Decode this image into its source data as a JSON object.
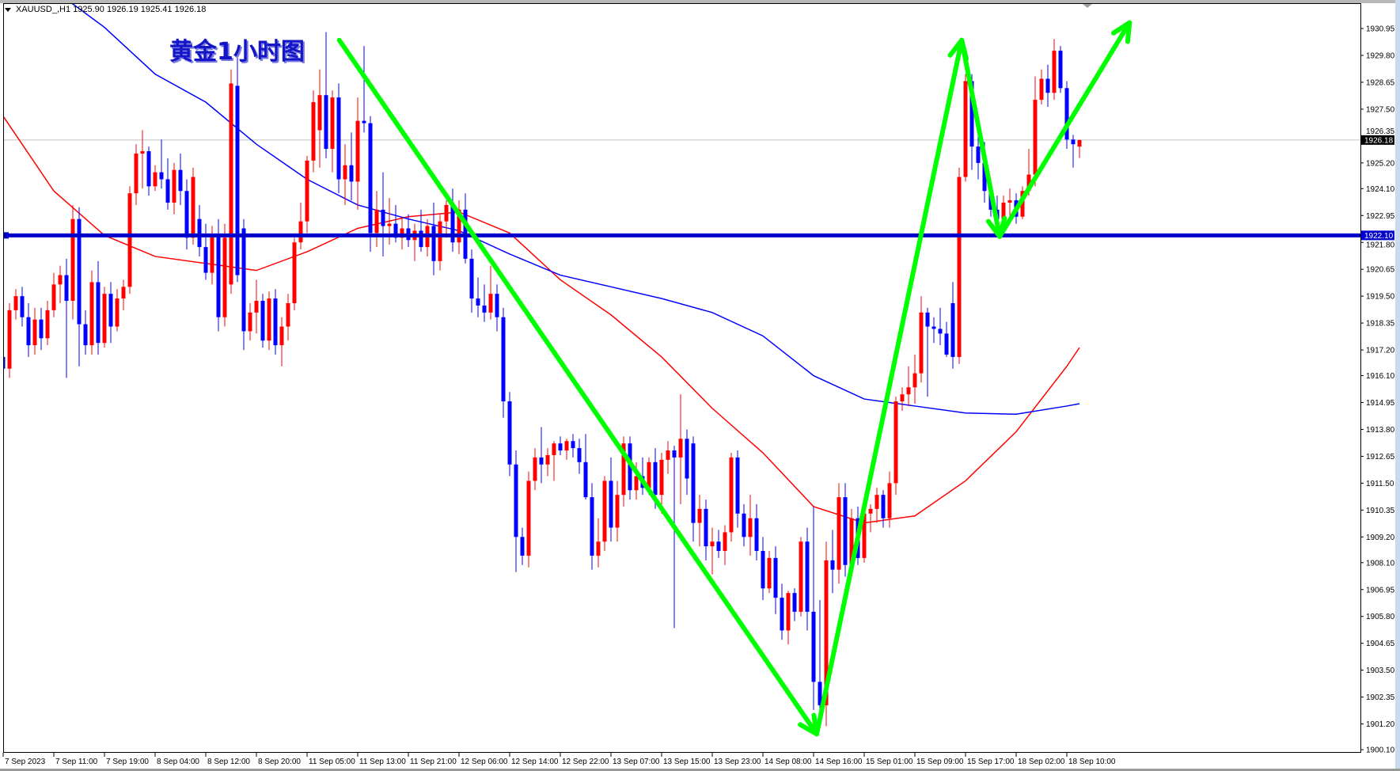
{
  "header": {
    "symbol_line": "XAUUSD_,H1  1925.90 1926.19 1925.41 1926.18",
    "menu_icon": "triangle-down-icon"
  },
  "overlay_title": "黄金1小时图",
  "chart_data": {
    "type": "candlestick",
    "symbol": "XAUUSD_",
    "timeframe": "H1",
    "ylim": [
      1900.0,
      1932.0
    ],
    "grid": false,
    "colors": {
      "up": "#ff0000",
      "down": "#0000ff",
      "ma_fast": "#ff0000",
      "ma_slow": "#0000ff",
      "trend_arrows": "#00ff00",
      "level_line": "#0000cc",
      "price_line": "#c0c0c0"
    },
    "y_ticks": [
      "1930.95",
      "1929.80",
      "1928.65",
      "1927.50",
      "1926.35",
      "1925.20",
      "1924.10",
      "1922.95",
      "1921.80",
      "1920.65",
      "1919.50",
      "1918.35",
      "1917.20",
      "1916.10",
      "1914.95",
      "1913.80",
      "1912.65",
      "1911.50",
      "1910.35",
      "1909.20",
      "1908.10",
      "1906.95",
      "1905.80",
      "1904.65",
      "1903.50",
      "1902.35",
      "1901.20",
      "1900.10"
    ],
    "x_labels": [
      "7 Sep 2023",
      "7 Sep 11:00",
      "7 Sep 19:00",
      "8 Sep 04:00",
      "8 Sep 12:00",
      "8 Sep 20:00",
      "11 Sep 05:00",
      "11 Sep 13:00",
      "11 Sep 21:00",
      "12 Sep 06:00",
      "12 Sep 14:00",
      "12 Sep 22:00",
      "13 Sep 07:00",
      "13 Sep 15:00",
      "13 Sep 23:00",
      "14 Sep 08:00",
      "14 Sep 16:00",
      "15 Sep 01:00",
      "15 Sep 09:00",
      "15 Sep 17:00",
      "18 Sep 02:00",
      "18 Sep 10:00"
    ],
    "bars_per_label": 8,
    "current_price": 1926.18,
    "current_price_label": "1926.18",
    "level": 1922.1,
    "level_label": "1922.10",
    "candles_ohlc": [
      [
        1916.9,
        1917.2,
        1915.9,
        1916.4
      ],
      [
        1916.4,
        1919.2,
        1916.0,
        1918.9
      ],
      [
        1918.9,
        1919.8,
        1918.5,
        1919.5
      ],
      [
        1919.5,
        1919.9,
        1918.2,
        1918.6
      ],
      [
        1918.6,
        1919.2,
        1916.9,
        1917.4
      ],
      [
        1917.4,
        1919.0,
        1917.0,
        1918.5
      ],
      [
        1918.5,
        1919.0,
        1917.2,
        1917.7
      ],
      [
        1917.7,
        1919.3,
        1917.4,
        1918.9
      ],
      [
        1918.9,
        1920.5,
        1918.6,
        1920.0
      ],
      [
        1920.0,
        1920.8,
        1919.2,
        1920.4
      ],
      [
        1920.4,
        1921.1,
        1916.0,
        1919.3
      ],
      [
        1919.3,
        1923.4,
        1918.5,
        1922.8
      ],
      [
        1922.8,
        1923.3,
        1916.5,
        1918.3
      ],
      [
        1918.3,
        1918.9,
        1917.0,
        1917.4
      ],
      [
        1917.4,
        1920.6,
        1917.0,
        1920.1
      ],
      [
        1920.1,
        1921.0,
        1917.0,
        1917.5
      ],
      [
        1917.5,
        1919.9,
        1917.3,
        1919.6
      ],
      [
        1919.6,
        1920.1,
        1917.5,
        1918.2
      ],
      [
        1918.2,
        1919.8,
        1918.0,
        1919.4
      ],
      [
        1919.4,
        1920.2,
        1918.9,
        1919.9
      ],
      [
        1919.9,
        1924.2,
        1919.6,
        1923.9
      ],
      [
        1923.9,
        1926.0,
        1923.4,
        1925.6
      ],
      [
        1925.6,
        1926.6,
        1924.1,
        1925.7
      ],
      [
        1925.7,
        1925.9,
        1923.8,
        1924.2
      ],
      [
        1924.2,
        1925.1,
        1924.0,
        1924.8
      ],
      [
        1924.8,
        1926.2,
        1924.1,
        1924.5
      ],
      [
        1924.5,
        1925.4,
        1923.2,
        1923.5
      ],
      [
        1923.5,
        1925.2,
        1923.0,
        1924.9
      ],
      [
        1924.9,
        1925.6,
        1923.4,
        1924.0
      ],
      [
        1924.0,
        1924.5,
        1921.5,
        1922.0
      ],
      [
        1922.0,
        1925.0,
        1921.7,
        1924.6
      ],
      [
        1922.8,
        1923.4,
        1921.2,
        1921.6
      ],
      [
        1921.6,
        1922.6,
        1920.2,
        1920.5
      ],
      [
        1920.5,
        1922.5,
        1920.0,
        1922.1
      ],
      [
        1922.1,
        1922.8,
        1918.0,
        1918.6
      ],
      [
        1918.6,
        1922.6,
        1918.2,
        1922.0
      ],
      [
        1920.0,
        1929.2,
        1919.6,
        1928.6
      ],
      [
        1928.5,
        1929.8,
        1920.1,
        1920.4
      ],
      [
        1922.4,
        1922.8,
        1917.2,
        1918.0
      ],
      [
        1918.0,
        1919.2,
        1917.6,
        1918.8
      ],
      [
        1918.8,
        1920.2,
        1917.9,
        1919.3
      ],
      [
        1919.3,
        1919.6,
        1917.3,
        1917.6
      ],
      [
        1917.6,
        1919.7,
        1917.2,
        1919.4
      ],
      [
        1919.4,
        1919.8,
        1917.0,
        1917.4
      ],
      [
        1917.4,
        1918.6,
        1916.5,
        1918.2
      ],
      [
        1918.2,
        1919.6,
        1917.6,
        1919.2
      ],
      [
        1919.2,
        1922.0,
        1918.9,
        1921.8
      ],
      [
        1921.8,
        1923.5,
        1921.5,
        1922.7
      ],
      [
        1922.7,
        1925.5,
        1922.2,
        1925.3
      ],
      [
        1925.3,
        1928.3,
        1924.8,
        1927.8
      ],
      [
        1926.6,
        1929.2,
        1925.0,
        1928.1
      ],
      [
        1928.1,
        1930.8,
        1925.4,
        1925.8
      ],
      [
        1925.8,
        1928.3,
        1924.8,
        1928.0
      ],
      [
        1928.0,
        1928.6,
        1923.9,
        1924.5
      ],
      [
        1924.5,
        1926.0,
        1923.4,
        1925.1
      ],
      [
        1925.1,
        1926.5,
        1923.6,
        1924.4
      ],
      [
        1924.4,
        1928.0,
        1923.2,
        1927.0
      ],
      [
        1927.0,
        1930.2,
        1926.5,
        1926.9
      ],
      [
        1926.9,
        1927.2,
        1921.4,
        1922.2
      ],
      [
        1922.2,
        1924.0,
        1921.6,
        1923.2
      ],
      [
        1923.2,
        1924.8,
        1921.2,
        1922.5
      ],
      [
        1922.5,
        1923.7,
        1921.7,
        1922.6
      ],
      [
        1922.6,
        1923.4,
        1921.8,
        1922.0
      ],
      [
        1922.0,
        1922.9,
        1921.5,
        1922.4
      ],
      [
        1922.4,
        1923.0,
        1921.6,
        1921.9
      ],
      [
        1921.9,
        1922.6,
        1921.0,
        1922.3
      ],
      [
        1922.3,
        1923.2,
        1921.4,
        1921.6
      ],
      [
        1921.6,
        1922.8,
        1921.2,
        1922.5
      ],
      [
        1922.5,
        1923.5,
        1920.4,
        1921.0
      ],
      [
        1921.0,
        1923.0,
        1920.6,
        1922.7
      ],
      [
        1922.7,
        1923.6,
        1922.0,
        1923.4
      ],
      [
        1923.4,
        1924.1,
        1921.4,
        1921.8
      ],
      [
        1921.8,
        1923.6,
        1921.3,
        1923.2
      ],
      [
        1923.2,
        1923.9,
        1920.9,
        1921.1
      ],
      [
        1921.1,
        1921.5,
        1918.8,
        1919.4
      ],
      [
        1919.4,
        1920.3,
        1918.6,
        1919.1
      ],
      [
        1919.1,
        1920.0,
        1918.4,
        1918.8
      ],
      [
        1918.8,
        1920.8,
        1918.5,
        1919.6
      ],
      [
        1919.6,
        1920.0,
        1918.0,
        1918.6
      ],
      [
        1918.6,
        1919.0,
        1914.3,
        1915.0
      ],
      [
        1915.0,
        1915.4,
        1911.8,
        1912.3
      ],
      [
        1912.3,
        1912.9,
        1907.7,
        1909.2
      ],
      [
        1909.2,
        1909.6,
        1908.0,
        1908.4
      ],
      [
        1908.4,
        1912.0,
        1907.9,
        1911.6
      ],
      [
        1911.6,
        1913.0,
        1911.2,
        1912.6
      ],
      [
        1912.6,
        1913.9,
        1911.5,
        1912.3
      ],
      [
        1912.3,
        1913.0,
        1911.8,
        1912.7
      ],
      [
        1912.7,
        1913.3,
        1911.6,
        1913.2
      ],
      [
        1913.2,
        1913.5,
        1912.7,
        1912.9
      ],
      [
        1912.9,
        1913.4,
        1912.5,
        1913.3
      ],
      [
        1913.3,
        1913.6,
        1912.6,
        1913.0
      ],
      [
        1913.0,
        1913.4,
        1911.9,
        1912.4
      ],
      [
        1912.4,
        1913.6,
        1910.8,
        1910.9
      ],
      [
        1910.9,
        1911.5,
        1907.8,
        1908.4
      ],
      [
        1908.4,
        1910.0,
        1907.9,
        1909.0
      ],
      [
        1909.0,
        1911.8,
        1908.6,
        1911.6
      ],
      [
        1911.6,
        1912.6,
        1909.0,
        1909.6
      ],
      [
        1909.6,
        1911.6,
        1909.0,
        1911.0
      ],
      [
        1911.0,
        1913.5,
        1910.5,
        1913.2
      ],
      [
        1913.2,
        1913.5,
        1910.8,
        1911.2
      ],
      [
        1911.2,
        1912.4,
        1910.8,
        1911.8
      ],
      [
        1911.8,
        1912.6,
        1911.0,
        1911.3
      ],
      [
        1911.3,
        1912.6,
        1911.0,
        1912.4
      ],
      [
        1912.4,
        1913.0,
        1910.4,
        1911.0
      ],
      [
        1911.0,
        1912.8,
        1910.2,
        1912.5
      ],
      [
        1912.5,
        1913.3,
        1911.9,
        1912.9
      ],
      [
        1912.9,
        1913.1,
        1905.3,
        1912.6
      ],
      [
        1912.6,
        1915.3,
        1910.6,
        1913.4
      ],
      [
        1913.4,
        1913.8,
        1911.0,
        1911.7
      ],
      [
        1913.2,
        1913.5,
        1909.0,
        1909.8
      ],
      [
        1909.8,
        1911.0,
        1908.8,
        1910.4
      ],
      [
        1910.4,
        1910.8,
        1908.2,
        1908.8
      ],
      [
        1908.8,
        1909.6,
        1907.6,
        1909.0
      ],
      [
        1909.0,
        1909.5,
        1908.3,
        1908.6
      ],
      [
        1908.6,
        1909.7,
        1908.0,
        1909.4
      ],
      [
        1909.4,
        1912.8,
        1909.0,
        1912.6
      ],
      [
        1912.6,
        1912.9,
        1909.6,
        1910.2
      ],
      [
        1910.2,
        1910.6,
        1908.8,
        1909.2
      ],
      [
        1909.2,
        1911.0,
        1908.4,
        1910.0
      ],
      [
        1910.0,
        1910.6,
        1908.2,
        1908.6
      ],
      [
        1908.6,
        1909.2,
        1906.5,
        1907.0
      ],
      [
        1907.0,
        1908.6,
        1906.8,
        1908.3
      ],
      [
        1908.3,
        1908.8,
        1905.9,
        1906.6
      ],
      [
        1906.6,
        1907.2,
        1904.8,
        1905.2
      ],
      [
        1905.2,
        1906.9,
        1904.6,
        1906.8
      ],
      [
        1906.8,
        1907.0,
        1905.6,
        1906.0
      ],
      [
        1906.0,
        1909.2,
        1905.8,
        1909.0
      ],
      [
        1909.0,
        1909.6,
        1905.2,
        1906.0
      ],
      [
        1906.0,
        1910.5,
        1901.8,
        1903.0
      ],
      [
        1903.0,
        1906.5,
        1901.2,
        1902.0
      ],
      [
        1902.0,
        1909.0,
        1901.1,
        1908.2
      ],
      [
        1908.2,
        1909.5,
        1906.8,
        1907.8
      ],
      [
        1907.8,
        1911.5,
        1907.2,
        1910.9
      ],
      [
        1910.9,
        1911.5,
        1907.5,
        1908.0
      ],
      [
        1908.0,
        1910.4,
        1907.6,
        1910.0
      ],
      [
        1910.0,
        1910.5,
        1908.0,
        1908.3
      ],
      [
        1908.3,
        1910.5,
        1908.1,
        1910.2
      ],
      [
        1910.2,
        1910.6,
        1909.4,
        1910.4
      ],
      [
        1910.4,
        1911.3,
        1909.8,
        1911.0
      ],
      [
        1911.0,
        1911.2,
        1909.6,
        1910.0
      ],
      [
        1910.0,
        1912.0,
        1909.6,
        1911.5
      ],
      [
        1911.5,
        1915.2,
        1911.0,
        1915.0
      ],
      [
        1915.0,
        1915.6,
        1914.6,
        1915.3
      ],
      [
        1915.3,
        1916.5,
        1914.8,
        1915.6
      ],
      [
        1915.6,
        1917.0,
        1914.9,
        1916.2
      ],
      [
        1916.2,
        1919.5,
        1915.8,
        1918.8
      ],
      [
        1918.8,
        1919.0,
        1915.2,
        1918.2
      ],
      [
        1918.2,
        1918.6,
        1917.5,
        1918.1
      ],
      [
        1918.1,
        1919.0,
        1917.4,
        1917.9
      ],
      [
        1917.9,
        1918.4,
        1916.9,
        1917.0
      ],
      [
        1919.2,
        1920.1,
        1916.4,
        1916.9
      ],
      [
        1916.9,
        1925.0,
        1916.6,
        1924.6
      ],
      [
        1924.6,
        1929.0,
        1924.4,
        1928.7
      ],
      [
        1928.7,
        1929.0,
        1924.9,
        1925.9
      ],
      [
        1925.9,
        1927.2,
        1924.5,
        1925.2
      ],
      [
        1925.2,
        1926.1,
        1923.5,
        1924.0
      ],
      [
        1924.0,
        1924.5,
        1922.9,
        1923.2
      ],
      [
        1923.2,
        1923.8,
        1922.6,
        1922.8
      ],
      [
        1922.8,
        1923.8,
        1922.4,
        1923.5
      ],
      [
        1923.5,
        1924.1,
        1922.9,
        1923.6
      ],
      [
        1923.6,
        1923.9,
        1922.6,
        1922.9
      ],
      [
        1922.9,
        1924.2,
        1922.8,
        1924.0
      ],
      [
        1924.0,
        1925.8,
        1923.8,
        1924.7
      ],
      [
        1924.7,
        1928.9,
        1924.2,
        1927.9
      ],
      [
        1927.9,
        1929.2,
        1927.7,
        1928.8
      ],
      [
        1928.8,
        1929.4,
        1927.6,
        1928.2
      ],
      [
        1928.2,
        1930.5,
        1927.9,
        1930.0
      ],
      [
        1930.0,
        1930.2,
        1928.2,
        1928.4
      ],
      [
        1928.4,
        1928.7,
        1925.8,
        1926.2
      ],
      [
        1926.2,
        1926.4,
        1925.0,
        1926.0
      ],
      [
        1925.9,
        1926.19,
        1925.41,
        1926.18
      ]
    ],
    "moving_averages": [
      {
        "color": "#ff0000",
        "points": [
          [
            0,
            1927.2
          ],
          [
            8,
            1924.0
          ],
          [
            16,
            1922.1
          ],
          [
            24,
            1921.2
          ],
          [
            32,
            1920.9
          ],
          [
            40,
            1920.6
          ],
          [
            48,
            1921.4
          ],
          [
            56,
            1922.4
          ],
          [
            64,
            1922.9
          ],
          [
            72,
            1923.1
          ],
          [
            80,
            1922.2
          ],
          [
            88,
            1920.2
          ],
          [
            96,
            1918.7
          ],
          [
            104,
            1916.9
          ],
          [
            112,
            1914.7
          ],
          [
            120,
            1912.8
          ],
          [
            128,
            1910.5
          ],
          [
            136,
            1909.8
          ],
          [
            144,
            1910.1
          ],
          [
            152,
            1911.6
          ],
          [
            160,
            1913.7
          ],
          [
            168,
            1916.5
          ],
          [
            170,
            1917.3
          ]
        ]
      },
      {
        "color": "#0000ff",
        "points": [
          [
            0,
            1934.5
          ],
          [
            8,
            1932.6
          ],
          [
            16,
            1931.0
          ],
          [
            24,
            1929.0
          ],
          [
            32,
            1927.8
          ],
          [
            40,
            1926.0
          ],
          [
            48,
            1924.5
          ],
          [
            56,
            1923.4
          ],
          [
            64,
            1922.8
          ],
          [
            72,
            1922.3
          ],
          [
            80,
            1921.3
          ],
          [
            88,
            1920.4
          ],
          [
            96,
            1919.9
          ],
          [
            104,
            1919.4
          ],
          [
            112,
            1918.8
          ],
          [
            120,
            1917.8
          ],
          [
            128,
            1916.1
          ],
          [
            136,
            1915.1
          ],
          [
            144,
            1914.8
          ],
          [
            152,
            1914.5
          ],
          [
            160,
            1914.45
          ],
          [
            168,
            1914.8
          ],
          [
            170,
            1914.9
          ]
        ]
      }
    ],
    "trend_arrows": [
      {
        "from": [
          53.1,
          1930.45
        ],
        "to": [
          128.5,
          1900.77
        ]
      },
      {
        "from": [
          128.5,
          1900.77
        ],
        "to": [
          151.4,
          1930.45
        ]
      },
      {
        "from": [
          151.4,
          1930.45
        ],
        "to": [
          157.4,
          1922.05
        ]
      },
      {
        "from": [
          157.4,
          1922.05
        ],
        "to": [
          177.9,
          1931.2
        ]
      }
    ]
  }
}
